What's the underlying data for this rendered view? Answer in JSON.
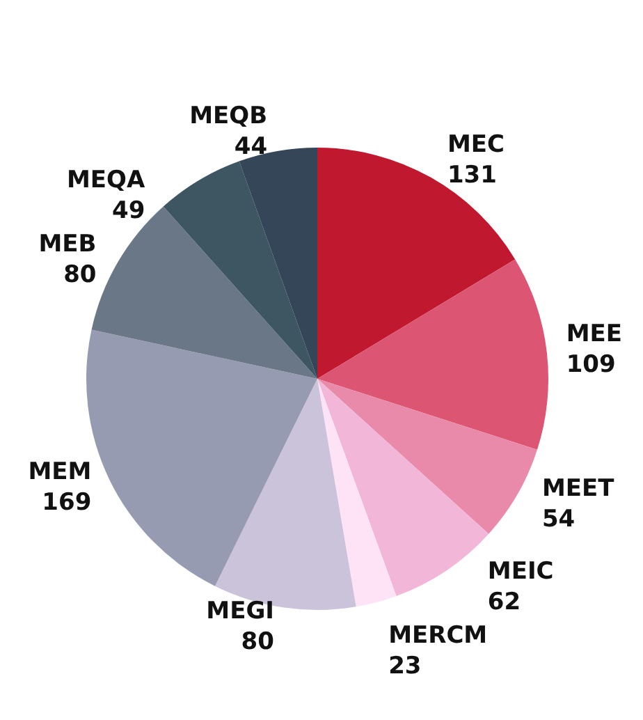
{
  "chart_data": {
    "type": "pie",
    "categories": [
      "MEC",
      "MEE",
      "MEET",
      "MEIC",
      "MERCM",
      "MEGI",
      "MEM",
      "MEB",
      "MEQA",
      "MEQB"
    ],
    "values": [
      131,
      109,
      54,
      62,
      23,
      80,
      169,
      80,
      49,
      44
    ],
    "colors": [
      "#c0192f",
      "#dc5673",
      "#e98aab",
      "#f2b6d9",
      "#fde3f5",
      "#cbc3da",
      "#979bb1",
      "#6a7787",
      "#3e5562",
      "#364659"
    ],
    "data_labels": true,
    "legend": false
  }
}
